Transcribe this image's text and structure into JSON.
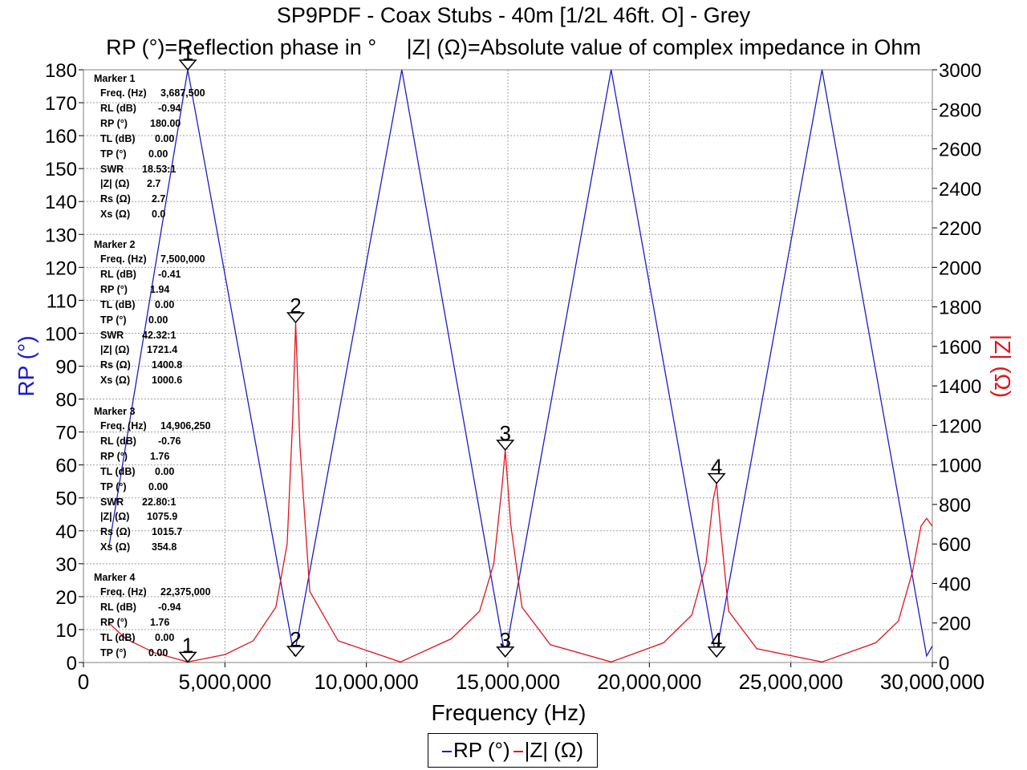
{
  "title": "SP9PDF - Coax Stubs - 40m [1/2L 46ft. O] - Grey",
  "subtitle": "RP (°)=Reflection phase in °     |Z| (Ω)=Absolute value of complex impedance in Ohm",
  "colors": {
    "rp": "#1c1cc8",
    "z": "#e0141e",
    "grid": "#a0a0a0"
  },
  "chart_data": {
    "type": "line",
    "xlabel": "Frequency (Hz)",
    "ylabel_left": "RP (°)",
    "ylabel_right": "|Z| (Ω)",
    "xlim": [
      0,
      30000000
    ],
    "ylim_left": [
      0,
      180
    ],
    "ylim_right": [
      0,
      3000
    ],
    "x_ticks": [
      0,
      5000000,
      10000000,
      15000000,
      20000000,
      25000000,
      30000000
    ],
    "x_tick_labels": [
      "0",
      "5,000,000",
      "10,000,000",
      "15,000,000",
      "20,000,000",
      "25,000,000",
      "30,000,000"
    ],
    "y_left_ticks": [
      0,
      10,
      20,
      30,
      40,
      50,
      60,
      70,
      80,
      90,
      100,
      110,
      120,
      130,
      140,
      150,
      160,
      170,
      180
    ],
    "y_right_ticks": [
      0,
      200,
      400,
      600,
      800,
      1000,
      1200,
      1400,
      1600,
      1800,
      2000,
      2200,
      2400,
      2600,
      2800,
      3000
    ],
    "grid": true,
    "legend_position": "bottom-center",
    "series": [
      {
        "name": "RP (°)",
        "axis": "left",
        "x": [
          900000,
          3687500,
          7450000,
          11250000,
          14900000,
          18650000,
          22350000,
          26100000,
          29800000,
          30000000
        ],
        "y": [
          35,
          180,
          2,
          180,
          2,
          180,
          2,
          180,
          2,
          5
        ]
      },
      {
        "name": "|Z| (Ω)",
        "axis": "right",
        "x": [
          900000,
          1500000,
          2500000,
          3687500,
          5000000,
          6000000,
          6800000,
          7200000,
          7400000,
          7500000,
          7650000,
          8000000,
          9000000,
          11200000,
          13000000,
          14000000,
          14500000,
          14800000,
          14906250,
          15100000,
          15500000,
          16500000,
          18650000,
          20500000,
          21500000,
          22000000,
          22250000,
          22375000,
          22500000,
          22800000,
          23800000,
          26100000,
          28000000,
          28800000,
          29300000,
          29600000,
          29800000,
          30000000
        ],
        "y": [
          200,
          120,
          50,
          3,
          40,
          110,
          280,
          600,
          1250,
          1721,
          1100,
          360,
          110,
          3,
          120,
          260,
          500,
          900,
          1076,
          700,
          280,
          90,
          3,
          100,
          240,
          500,
          820,
          907,
          700,
          260,
          70,
          3,
          100,
          210,
          460,
          690,
          730,
          690
        ]
      }
    ],
    "markers": [
      {
        "label": "1",
        "x": 3687500,
        "rp": 180.0,
        "z": 2.7
      },
      {
        "label": "2",
        "x": 7500000,
        "rp": 1.94,
        "z": 1721.4
      },
      {
        "label": "3",
        "x": 14906250,
        "rp": 1.76,
        "z": 1075.9
      },
      {
        "label": "4",
        "x": 22375000,
        "rp": 1.76,
        "z": 907
      }
    ]
  },
  "marker_panel": [
    {
      "title": "Marker 1",
      "rows": [
        [
          "Freq. (Hz)",
          "3,687,500"
        ],
        [
          "RL (dB)",
          "-0.94"
        ],
        [
          "RP (°)",
          "180.00"
        ],
        [
          "TL (dB)",
          "0.00"
        ],
        [
          "TP (°)",
          "0.00"
        ],
        [
          "SWR",
          "18.53:1"
        ],
        [
          "|Z| (Ω)",
          "2.7"
        ],
        [
          "Rs (Ω)",
          "2.7"
        ],
        [
          "Xs (Ω)",
          "0.0"
        ]
      ]
    },
    {
      "title": "Marker 2",
      "rows": [
        [
          "Freq. (Hz)",
          "7,500,000"
        ],
        [
          "RL (dB)",
          "-0.41"
        ],
        [
          "RP (°)",
          "1.94"
        ],
        [
          "TL (dB)",
          "0.00"
        ],
        [
          "TP (°)",
          "0.00"
        ],
        [
          "SWR",
          "42.32:1"
        ],
        [
          "|Z| (Ω)",
          "1721.4"
        ],
        [
          "Rs (Ω)",
          "1400.8"
        ],
        [
          "Xs (Ω)",
          "1000.6"
        ]
      ]
    },
    {
      "title": "Marker 3",
      "rows": [
        [
          "Freq. (Hz)",
          "14,906,250"
        ],
        [
          "RL (dB)",
          "-0.76"
        ],
        [
          "RP (°)",
          "1.76"
        ],
        [
          "TL (dB)",
          "0.00"
        ],
        [
          "TP (°)",
          "0.00"
        ],
        [
          "SWR",
          "22.80:1"
        ],
        [
          "|Z| (Ω)",
          "1075.9"
        ],
        [
          "Rs (Ω)",
          "1015.7"
        ],
        [
          "Xs (Ω)",
          "354.8"
        ]
      ]
    },
    {
      "title": "Marker 4",
      "rows": [
        [
          "Freq. (Hz)",
          "22,375,000"
        ],
        [
          "RL (dB)",
          "-0.94"
        ],
        [
          "RP (°)",
          "1.76"
        ],
        [
          "TL (dB)",
          "0.00"
        ],
        [
          "TP (°)",
          "0.00"
        ]
      ]
    }
  ],
  "legend": {
    "rp": "RP (°)",
    "z": "|Z| (Ω)"
  }
}
